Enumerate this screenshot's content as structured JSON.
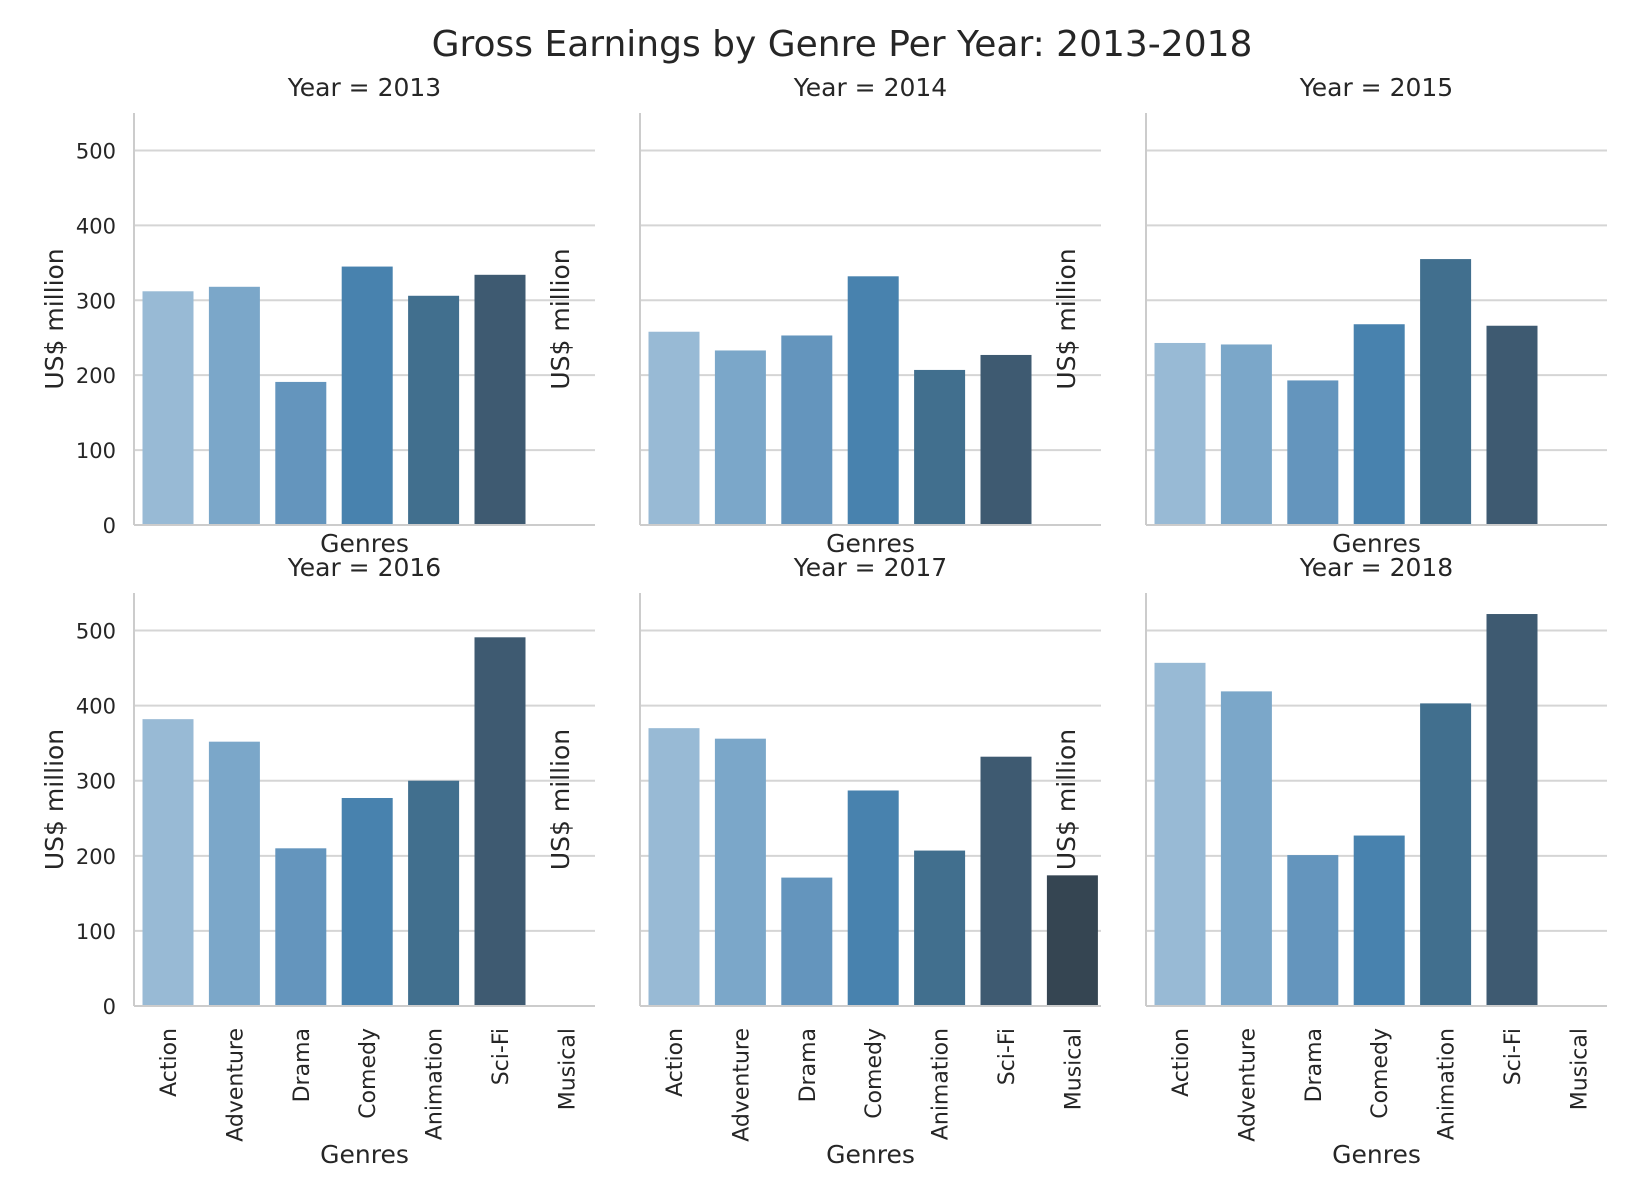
{
  "chart_data": {
    "type": "bar",
    "title": "Gross Earnings by Genre Per Year: 2013-2018",
    "xlabel": "Genres",
    "ylabel": "US$ million",
    "ylim": [
      0,
      550
    ],
    "yticks": [
      0,
      100,
      200,
      300,
      400,
      500
    ],
    "grid": "horizontal",
    "layout": "2 rows x 3 columns, shared y axis",
    "categories": [
      "Action",
      "Adventure",
      "Drama",
      "Comedy",
      "Animation",
      "Sci-Fi",
      "Musical"
    ],
    "colors": [
      "#98bad5",
      "#7ba7c9",
      "#6495bd",
      "#4882ae",
      "#416f8e",
      "#3e5a71",
      "#354552"
    ],
    "panels": [
      {
        "title": "Year = 2013",
        "values": [
          312,
          318,
          191,
          345,
          306,
          334,
          null
        ]
      },
      {
        "title": "Year = 2014",
        "values": [
          258,
          233,
          253,
          332,
          207,
          227,
          null
        ]
      },
      {
        "title": "Year = 2015",
        "values": [
          243,
          241,
          193,
          268,
          355,
          266,
          null
        ]
      },
      {
        "title": "Year = 2016",
        "values": [
          382,
          352,
          210,
          277,
          300,
          491,
          null
        ]
      },
      {
        "title": "Year = 2017",
        "values": [
          370,
          356,
          171,
          287,
          207,
          332,
          174
        ]
      },
      {
        "title": "Year = 2018",
        "values": [
          457,
          419,
          201,
          227,
          403,
          522,
          null
        ]
      }
    ]
  }
}
